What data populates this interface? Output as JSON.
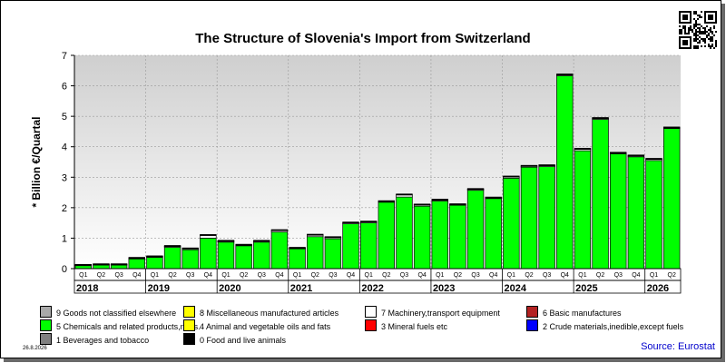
{
  "chart_data": {
    "type": "bar",
    "stacked": true,
    "title": "The Structure of Slovenia's Import from Switzerland",
    "ylabel": "* Billion €/Quartal",
    "ylim": [
      0,
      7
    ],
    "yticks": [
      0,
      1,
      2,
      3,
      4,
      5,
      6,
      7
    ],
    "grid": true,
    "categories": [
      "Q1",
      "Q2",
      "Q3",
      "Q4",
      "Q1",
      "Q2",
      "Q3",
      "Q4",
      "Q1",
      "Q2",
      "Q3",
      "Q4",
      "Q1",
      "Q2",
      "Q3",
      "Q4",
      "Q1",
      "Q2",
      "Q3",
      "Q4",
      "Q1",
      "Q2",
      "Q3",
      "Q4",
      "Q1",
      "Q2",
      "Q3",
      "Q4",
      "Q1",
      "Q2",
      "Q3",
      "Q4",
      "Q1",
      "Q2"
    ],
    "years": [
      {
        "label": "2018",
        "quarters": 4
      },
      {
        "label": "2019",
        "quarters": 4
      },
      {
        "label": "2020",
        "quarters": 4
      },
      {
        "label": "2021",
        "quarters": 4
      },
      {
        "label": "2022",
        "quarters": 4
      },
      {
        "label": "2023",
        "quarters": 4
      },
      {
        "label": "2024",
        "quarters": 4
      },
      {
        "label": "2025",
        "quarters": 4
      },
      {
        "label": "2026",
        "quarters": 2
      }
    ],
    "series": [
      {
        "name": "5 Chemicals and related products,n.e.s.",
        "color": "#00ff00",
        "values": [
          0.1,
          0.12,
          0.12,
          0.32,
          0.37,
          0.7,
          0.62,
          1.0,
          0.87,
          0.75,
          0.87,
          1.2,
          0.65,
          1.05,
          0.98,
          1.47,
          1.5,
          2.18,
          2.35,
          2.05,
          2.22,
          2.08,
          2.57,
          2.3,
          2.97,
          3.33,
          3.35,
          6.33,
          3.87,
          4.9,
          3.77,
          3.67,
          3.55,
          4.6
        ]
      },
      {
        "name": "7 Machinery,transport equipment",
        "color": "#ffffff",
        "values": [
          0.01,
          0.01,
          0.01,
          0.02,
          0.02,
          0.03,
          0.03,
          0.09,
          0.03,
          0.02,
          0.03,
          0.05,
          0.02,
          0.05,
          0.04,
          0.03,
          0.03,
          0.02,
          0.07,
          0.04,
          0.03,
          0.02,
          0.03,
          0.02,
          0.04,
          0.03,
          0.03,
          0.03,
          0.05,
          0.03,
          0.02,
          0.03,
          0.04,
          0.02
        ]
      },
      {
        "name": "6 Basic manufactures",
        "color": "#b22222",
        "values": [
          0.01,
          0.01,
          0.01,
          0.01,
          0.01,
          0.01,
          0.01,
          0.01,
          0.01,
          0.01,
          0.01,
          0.01,
          0.01,
          0.01,
          0.01,
          0.01,
          0.01,
          0.01,
          0.01,
          0.01,
          0.01,
          0.01,
          0.01,
          0.01,
          0.01,
          0.01,
          0.01,
          0.01,
          0.01,
          0.01,
          0.01,
          0.01,
          0.01,
          0.01
        ]
      },
      {
        "name": "9 Goods not classified elsewhere",
        "color": "#a9a9a9",
        "values": [
          0.02,
          0.02,
          0.02,
          0.02,
          0.02,
          0.02,
          0.02,
          0.02,
          0.02,
          0.02,
          0.02,
          0.02,
          0.02,
          0.02,
          0.02,
          0.02,
          0.02,
          0.02,
          0.02,
          0.02,
          0.02,
          0.02,
          0.02,
          0.02,
          0.02,
          0.02,
          0.02,
          0.02,
          0.02,
          0.02,
          0.02,
          0.02,
          0.02,
          0.02
        ]
      }
    ]
  },
  "legend": [
    [
      {
        "label": "9 Goods not classified elsewhere",
        "color": "#a9a9a9"
      },
      {
        "label": "8 Miscellaneous manufactured articles",
        "color": "#ffff00"
      },
      {
        "label": "7 Machinery,transport equipment",
        "color": "#ffffff"
      },
      {
        "label": "6 Basic manufactures",
        "color": "#b22222"
      }
    ],
    [
      {
        "label": "5 Chemicals and related products,n.e.s.",
        "color": "#00ff00"
      },
      {
        "label": "4 Animal and vegetable oils and fats",
        "color": "#ffff00"
      },
      {
        "label": "3 Mineral fuels etc",
        "color": "#ff0000"
      },
      {
        "label": "2 Crude materials,inedible,except fuels",
        "color": "#0000ff"
      }
    ],
    [
      {
        "label": "1 Beverages and tobacco",
        "color": "#808080"
      },
      {
        "label": "0 Food and live animals",
        "color": "#000000"
      }
    ]
  ],
  "source": "Source: Eurostat",
  "date": "26.8.2026",
  "qr_icon": "qr-code-icon"
}
